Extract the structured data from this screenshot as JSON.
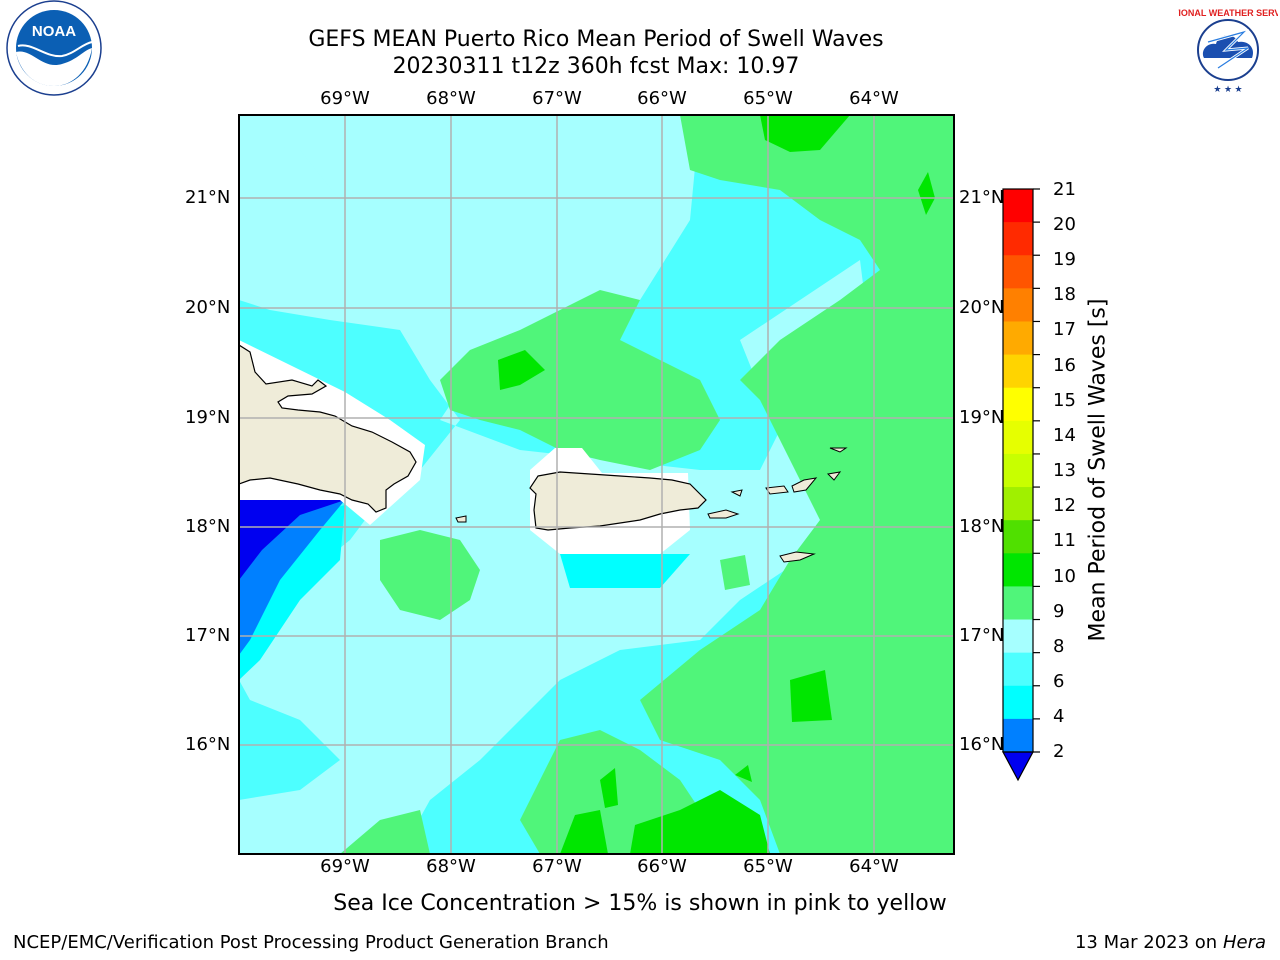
{
  "header": {
    "title_line1": "GEFS MEAN Puerto Rico Mean Period of Swell Waves",
    "title_line2": "20230311 t12z 360h fcst   Max: 10.97"
  },
  "map": {
    "lon_labels": [
      "69°W",
      "68°W",
      "67°W",
      "66°W",
      "65°W",
      "64°W"
    ],
    "lat_labels": [
      "21°N",
      "20°N",
      "19°N",
      "18°N",
      "17°N",
      "16°N"
    ],
    "land_color": "#efecd9",
    "ocean_colors": {
      "cyan_6_8": "#4dffff",
      "lightcyan_8_9": "#a6ffff",
      "green_9_10": "#50f57a",
      "green_10_11": "#00e600",
      "cyan_4_6": "#00ffff",
      "blue_2_4": "#0080ff",
      "blue_lt2": "#0000f0"
    }
  },
  "colorbar": {
    "title": "Mean Period of Swell Waves [s]",
    "ticks": [
      "21",
      "20",
      "19",
      "18",
      "17",
      "16",
      "15",
      "14",
      "13",
      "12",
      "11",
      "10",
      "9",
      "8",
      "6",
      "4",
      "2"
    ],
    "colors": [
      "#ff0000",
      "#ff2a00",
      "#ff5500",
      "#ff8000",
      "#ffaa00",
      "#ffd400",
      "#ffff00",
      "#e6ff00",
      "#c8ff00",
      "#a0f000",
      "#50e000",
      "#00e600",
      "#50f57a",
      "#a6ffff",
      "#4dffff",
      "#00ffff",
      "#0080ff"
    ],
    "extend_color": "#0000f0"
  },
  "footer": {
    "note": "Sea Ice Concentration > 15% is shown in pink to yellow",
    "left": "NCEP/EMC/Verification Post Processing Product Generation Branch",
    "date": "13 Mar 2023 on",
    "host": "Hera"
  },
  "logos": {
    "noaa_text": "NOAA",
    "nws_text": "NATIONAL WEATHER SERVICE"
  }
}
